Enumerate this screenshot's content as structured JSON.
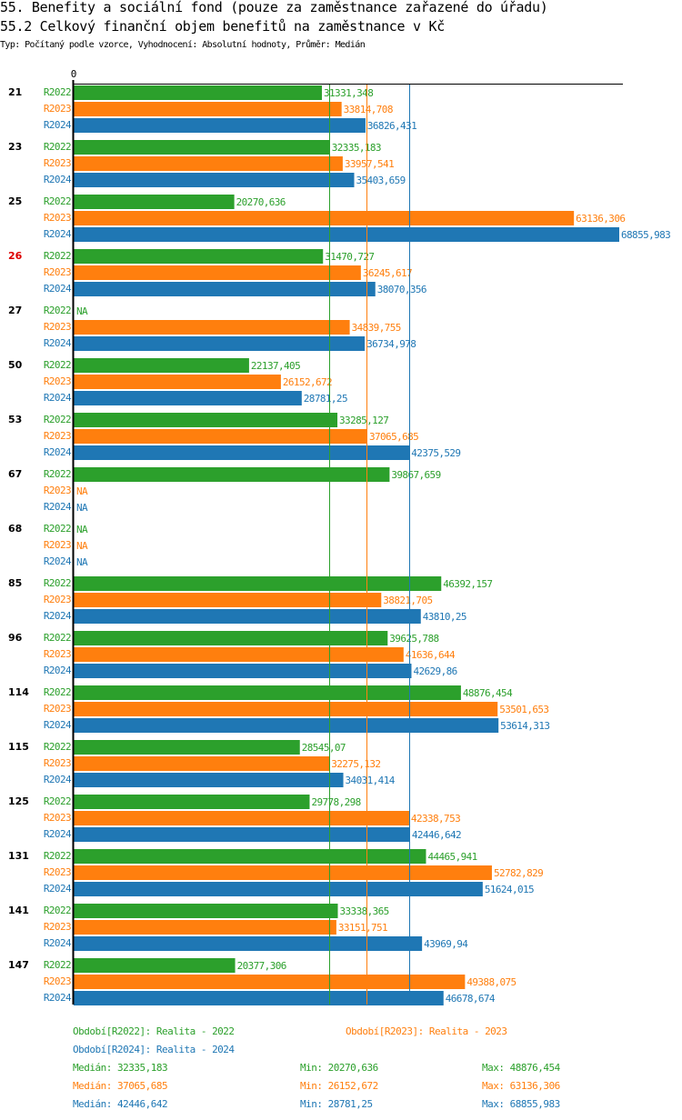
{
  "header": {
    "title": "55. Benefity a sociální fond (pouze za zaměstnance zařazené do úřadu)",
    "subtitle": "55.2 Celkový finanční objem benefitů na zaměstnance v Kč",
    "meta": "Typ: Počítaný podle vzorce, Vyhodnocení: Absolutní hodnoty, Průměr: Medián"
  },
  "chart_data": {
    "type": "bar",
    "orientation": "horizontal",
    "title": "55.2 Celkový finanční objem benefitů na zaměstnance v Kč",
    "xlabel": "",
    "ylabel": "",
    "x_tick_labels": [
      "0"
    ],
    "xlim": [
      0,
      68855.983
    ],
    "grid": false,
    "categories": [
      "21",
      "23",
      "25",
      "26",
      "27",
      "50",
      "53",
      "67",
      "68",
      "85",
      "96",
      "114",
      "115",
      "125",
      "131",
      "141",
      "147"
    ],
    "highlighted_category": "26",
    "highlight_color": "#dd0000",
    "series": [
      {
        "name": "R2022",
        "color": "#2ca02c",
        "values": [
          31331.348,
          32335.183,
          20270.636,
          31470.727,
          null,
          22137.405,
          33285.127,
          39867.659,
          null,
          46392.157,
          39625.788,
          48876.454,
          28545.07,
          29778.298,
          44465.941,
          33338.365,
          20377.306
        ],
        "labels": [
          "31331,348",
          "32335,183",
          "20270,636",
          "31470,727",
          "NA",
          "22137,405",
          "33285,127",
          "39867,659",
          "NA",
          "46392,157",
          "39625,788",
          "48876,454",
          "28545,07",
          "29778,298",
          "44465,941",
          "33338,365",
          "20377,306"
        ],
        "median": 32335.183
      },
      {
        "name": "R2023",
        "color": "#ff7f0e",
        "values": [
          33814.708,
          33957.541,
          63136.306,
          36245.617,
          34839.755,
          26152.672,
          37065.685,
          null,
          null,
          38821.705,
          41636.644,
          53501.653,
          32275.132,
          42338.753,
          52782.829,
          33151.751,
          49388.075
        ],
        "labels": [
          "33814,708",
          "33957,541",
          "63136,306",
          "36245,617",
          "34839,755",
          "26152,672",
          "37065,685",
          "NA",
          "NA",
          "38821,705",
          "41636,644",
          "53501,653",
          "32275,132",
          "42338,753",
          "52782,829",
          "33151,751",
          "49388,075"
        ],
        "median": 37065.685
      },
      {
        "name": "R2024",
        "color": "#1f77b4",
        "values": [
          36826.431,
          35403.659,
          68855.983,
          38070.356,
          36734.978,
          28781.25,
          42375.529,
          null,
          null,
          43810.25,
          42629.86,
          53614.313,
          34031.414,
          42446.642,
          51624.015,
          43969.94,
          46678.674
        ],
        "labels": [
          "36826,431",
          "35403,659",
          "68855,983",
          "38070,356",
          "36734,978",
          "28781,25",
          "42375,529",
          "NA",
          "NA",
          "43810,25",
          "42629,86",
          "53614,313",
          "34031,414",
          "42446,642",
          "51624,015",
          "43969,94",
          "46678,674"
        ],
        "median": 42446.642
      }
    ]
  },
  "legend": {
    "periods": [
      {
        "text": "Období[R2022]: Realita - 2022",
        "color": "#2ca02c"
      },
      {
        "text": "Období[R2023]: Realita - 2023",
        "color": "#ff7f0e"
      },
      {
        "text": "Období[R2024]: Realita - 2024",
        "color": "#1f77b4"
      }
    ],
    "stats": [
      {
        "median": "Medián: 32335,183",
        "min": "Min: 20270,636",
        "max": "Max: 48876,454",
        "color": "#2ca02c"
      },
      {
        "median": "Medián: 37065,685",
        "min": "Min: 26152,672",
        "max": "Max: 63136,306",
        "color": "#ff7f0e"
      },
      {
        "median": "Medián: 42446,642",
        "min": "Min: 28781,25",
        "max": "Max: 68855,983",
        "color": "#1f77b4"
      }
    ]
  }
}
